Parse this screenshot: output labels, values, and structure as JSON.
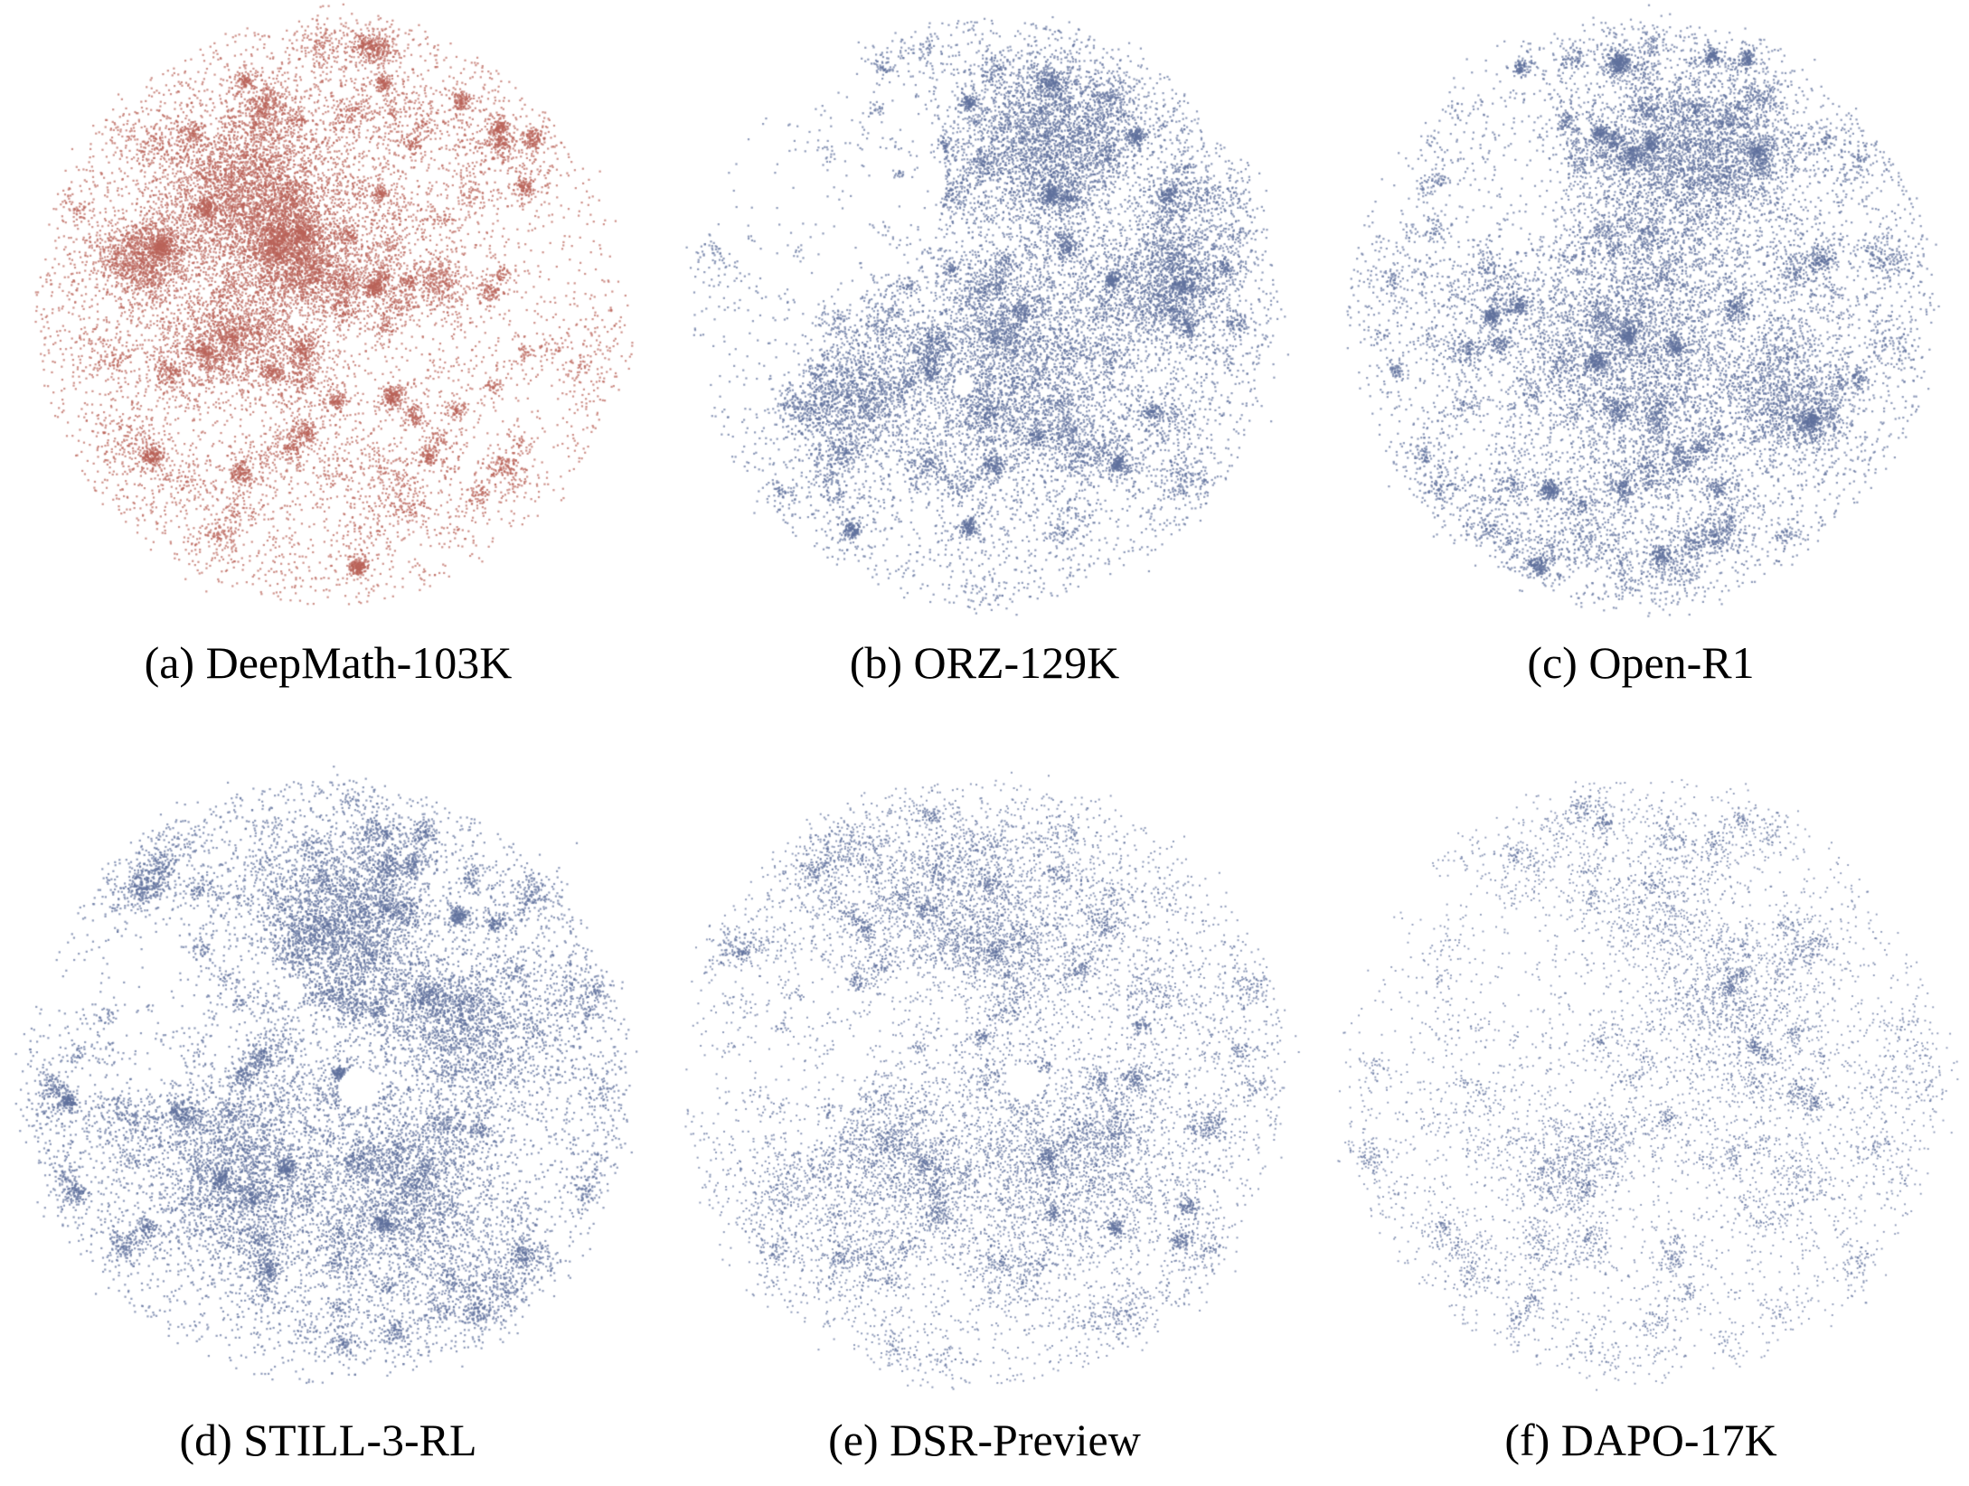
{
  "figure": {
    "background_color": "#ffffff",
    "caption_color": "#000000",
    "layout": "2 rows x 3 columns of unlabeled 2-D embedding scatter clouds with captions beneath each cloud",
    "red_accent": "#b96358",
    "blue_accent": "#60719c"
  },
  "chart_data": [
    {
      "type": "scatter",
      "title": "(a) DeepMath-103K",
      "dataset_name": "DeepMath-103K",
      "point_color": "#b96358",
      "axes": "hidden",
      "grid": false,
      "legend": false,
      "description": "Very dense roughly circular t-SNE point cloud; heavy merged dark mass in upper-left, many small clusters, sparser right edge",
      "render": {
        "seed": 11,
        "fog": 8500,
        "clusters": 130,
        "cMin": 15,
        "cMax": 160,
        "size": 2.2,
        "alpha": 0.7,
        "blobs": [
          {
            "x": -0.28,
            "y": -0.38,
            "r": 0.3,
            "n": 3200
          },
          {
            "x": -0.62,
            "y": -0.18,
            "r": 0.14,
            "n": 1100
          },
          {
            "x": -0.08,
            "y": -0.16,
            "r": 0.16,
            "n": 1200
          },
          {
            "x": 0.38,
            "y": -0.1,
            "r": 0.09,
            "n": 550
          },
          {
            "x": -0.35,
            "y": 0.1,
            "r": 0.2,
            "n": 900
          }
        ],
        "thin": [
          {
            "x": 0.62,
            "y": -0.05,
            "r": 0.42,
            "keep": 0.5
          },
          {
            "x": 0.5,
            "y": 0.55,
            "r": 0.35,
            "keep": 0.6
          }
        ],
        "holes": []
      }
    },
    {
      "type": "scatter",
      "title": "(b) ORZ-129K",
      "dataset_name": "ORZ-129K",
      "point_color": "#60719c",
      "axes": "hidden",
      "grid": false,
      "legend": false,
      "description": "Dense blue cloud; heavy mass upper-right and center-bottom, sparse scattered arc on upper-left, tiny white void left of center",
      "render": {
        "seed": 22,
        "fog": 8000,
        "clusters": 120,
        "cMin": 15,
        "cMax": 150,
        "size": 2.2,
        "alpha": 0.7,
        "blobs": [
          {
            "x": 0.22,
            "y": -0.58,
            "r": 0.3,
            "n": 2600
          },
          {
            "x": 0.12,
            "y": 0.18,
            "r": 0.4,
            "n": 2600
          },
          {
            "x": 0.6,
            "y": -0.1,
            "r": 0.22,
            "n": 1100
          },
          {
            "x": -0.45,
            "y": 0.28,
            "r": 0.18,
            "n": 900
          }
        ],
        "thin": [
          {
            "x": -0.55,
            "y": -0.45,
            "r": 0.42,
            "keep": 0.12
          },
          {
            "x": -0.8,
            "y": 0.05,
            "r": 0.28,
            "keep": 0.3
          },
          {
            "x": -0.3,
            "y": -0.2,
            "r": 0.25,
            "keep": 0.45
          }
        ],
        "holes": [
          {
            "x": -0.07,
            "y": 0.25,
            "r": 0.035
          }
        ]
      }
    },
    {
      "type": "scatter",
      "title": "(c) Open-R1",
      "dataset_name": "Open-R1",
      "point_color": "#60719c",
      "axes": "hidden",
      "grid": false,
      "legend": false,
      "description": "Dense blue cloud; large mass top-center and middle, lumpy border of small clusters around lower edge, lighter upper-left",
      "render": {
        "seed": 33,
        "fog": 8500,
        "clusters": 125,
        "cMin": 15,
        "cMax": 150,
        "size": 2.2,
        "alpha": 0.7,
        "blobs": [
          {
            "x": 0.18,
            "y": -0.5,
            "r": 0.3,
            "n": 2300
          },
          {
            "x": -0.05,
            "y": 0.12,
            "r": 0.42,
            "n": 2800
          },
          {
            "x": 0.5,
            "y": 0.3,
            "r": 0.2,
            "n": 900
          }
        ],
        "thin": [
          {
            "x": -0.6,
            "y": -0.5,
            "r": 0.35,
            "keep": 0.3
          },
          {
            "x": -0.75,
            "y": 0.3,
            "r": 0.3,
            "keep": 0.5
          }
        ],
        "holes": []
      }
    },
    {
      "type": "scatter",
      "title": "(d) STILL-3-RL",
      "dataset_name": "STILL-3-RL",
      "point_color": "#60719c",
      "axes": "hidden",
      "grid": false,
      "legend": false,
      "description": "Dense blue cloud; distinct white hole just right of center, sparse bay on left-middle, prominent clusters along top",
      "render": {
        "seed": 44,
        "fog": 8000,
        "clusters": 135,
        "cMin": 15,
        "cMax": 140,
        "size": 2.2,
        "alpha": 0.7,
        "blobs": [
          {
            "x": 0.05,
            "y": -0.52,
            "r": 0.26,
            "n": 1900
          },
          {
            "x": -0.3,
            "y": 0.3,
            "r": 0.3,
            "n": 1700
          },
          {
            "x": 0.28,
            "y": 0.38,
            "r": 0.3,
            "n": 1700
          },
          {
            "x": 0.45,
            "y": -0.15,
            "r": 0.25,
            "n": 1200
          }
        ],
        "thin": [
          {
            "x": -0.7,
            "y": -0.25,
            "r": 0.3,
            "keep": 0.3
          },
          {
            "x": -0.45,
            "y": -0.35,
            "r": 0.28,
            "keep": 0.5
          }
        ],
        "holes": [
          {
            "x": 0.1,
            "y": 0.02,
            "r": 0.065
          },
          {
            "x": -0.12,
            "y": -0.3,
            "r": 0.04
          }
        ]
      }
    },
    {
      "type": "scatter",
      "title": "(e) DSR-Preview",
      "dataset_name": "DSR-Preview",
      "point_color": "#60719c",
      "axes": "hidden",
      "grid": false,
      "legend": false,
      "description": "Medium-density blue cloud of fine dots; small white hole near center, sparser left flank",
      "render": {
        "seed": 55,
        "fog": 7500,
        "clusters": 130,
        "cMin": 10,
        "cMax": 90,
        "size": 2.0,
        "alpha": 0.7,
        "blobs": [
          {
            "x": 0.0,
            "y": -0.5,
            "r": 0.3,
            "n": 1300
          },
          {
            "x": 0.2,
            "y": 0.3,
            "r": 0.35,
            "n": 1300
          },
          {
            "x": -0.35,
            "y": 0.25,
            "r": 0.3,
            "n": 1100
          }
        ],
        "thin": [
          {
            "x": -0.7,
            "y": -0.1,
            "r": 0.33,
            "keep": 0.25
          },
          {
            "x": -0.2,
            "y": -0.2,
            "r": 0.2,
            "keep": 0.5
          }
        ],
        "holes": [
          {
            "x": 0.13,
            "y": 0.0,
            "r": 0.06
          }
        ]
      }
    },
    {
      "type": "scatter",
      "title": "(f) DAPO-17K",
      "dataset_name": "DAPO-17K",
      "point_color": "#60719c",
      "axes": "hidden",
      "grid": false,
      "legend": false,
      "description": "Sparse light blue cloud of fine individual dots; same circular footprint but far fewer points, few small dense clusters",
      "render": {
        "seed": 66,
        "fog": 5200,
        "clusters": 120,
        "cMin": 6,
        "cMax": 55,
        "size": 1.9,
        "alpha": 0.7,
        "blobs": [
          {
            "x": -0.25,
            "y": 0.28,
            "r": 0.16,
            "n": 420
          },
          {
            "x": 0.3,
            "y": -0.3,
            "r": 0.2,
            "n": 380
          },
          {
            "x": 0.05,
            "y": -0.55,
            "r": 0.18,
            "n": 320
          }
        ],
        "thin": [
          {
            "x": -0.65,
            "y": -0.35,
            "r": 0.35,
            "keep": 0.25
          }
        ],
        "holes": []
      }
    }
  ]
}
